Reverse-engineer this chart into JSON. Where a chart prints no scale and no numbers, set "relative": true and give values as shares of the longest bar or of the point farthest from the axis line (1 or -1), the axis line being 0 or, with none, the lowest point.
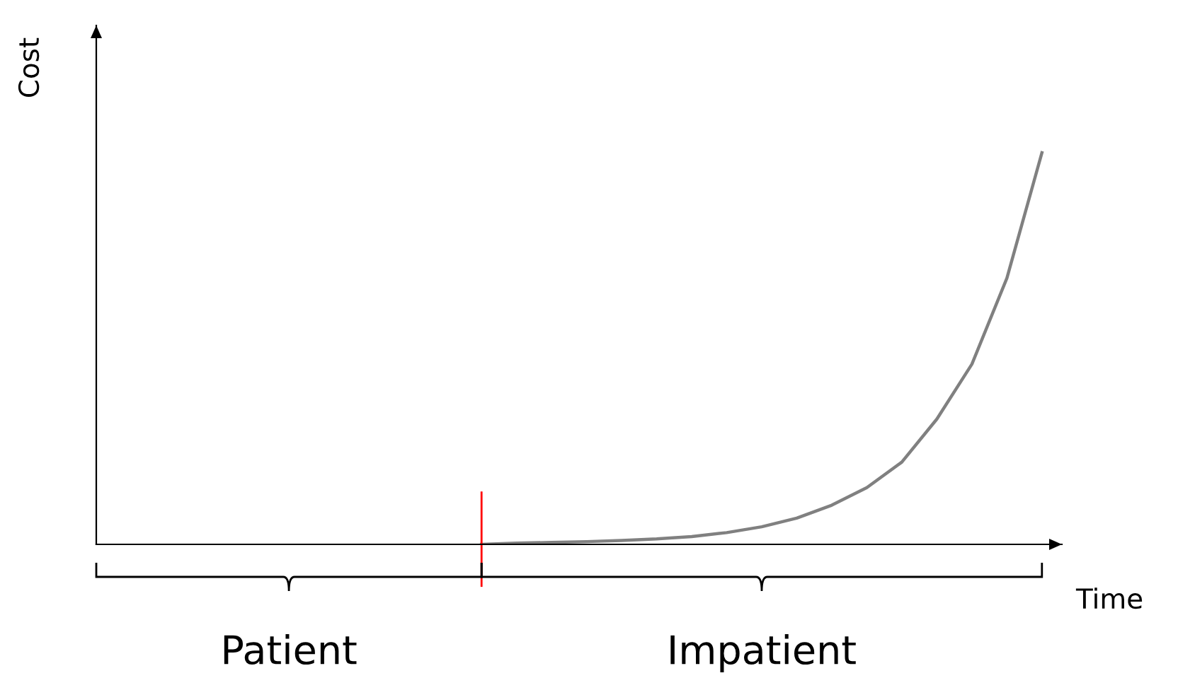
{
  "chart_data": {
    "type": "line",
    "relative": true,
    "xlabel": "Time",
    "ylabel": "Cost",
    "categories": [
      null,
      null,
      null,
      null,
      null,
      null,
      null,
      null,
      null,
      null,
      null,
      null,
      null,
      null,
      null,
      null,
      null,
      null,
      null,
      null,
      null,
      null,
      null,
      null,
      null,
      null,
      null,
      null
    ],
    "series": [
      {
        "color": "#808080",
        "values": [
          null,
          null,
          null,
          null,
          null,
          null,
          null,
          null,
          null,
          null,
          null,
          0,
          0.003,
          0.005,
          0.007,
          0.01,
          0.014,
          0.02,
          0.03,
          0.045,
          0.067,
          0.1,
          0.145,
          0.21,
          0.32,
          0.46,
          0.68,
          1
        ]
      }
    ],
    "annotations": [
      "Patient",
      "Impatient"
    ],
    "legend": false
  }
}
